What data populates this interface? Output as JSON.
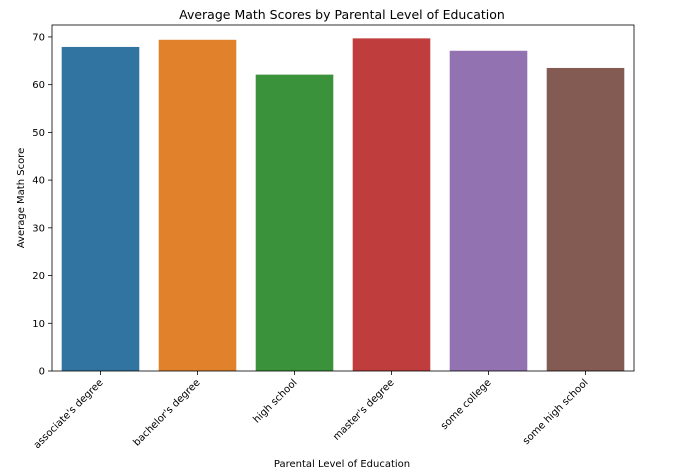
{
  "chart_data": {
    "type": "bar",
    "title": "Average Math Scores by Parental Level of Education",
    "xlabel": "Parental Level of Education",
    "ylabel": "Average Math Score",
    "categories": [
      "associate's degree",
      "bachelor's degree",
      "high school",
      "master's degree",
      "some college",
      "some high school"
    ],
    "values": [
      67.9,
      69.4,
      62.1,
      69.7,
      67.1,
      63.5
    ],
    "ylim": [
      0,
      72.5
    ],
    "yticks": [
      0,
      10,
      20,
      30,
      40,
      50,
      60,
      70
    ],
    "colors": [
      "#3274a1",
      "#e1812c",
      "#3a923a",
      "#c03d3e",
      "#9372b2",
      "#845b53"
    ],
    "grid": false,
    "legend": "none"
  }
}
